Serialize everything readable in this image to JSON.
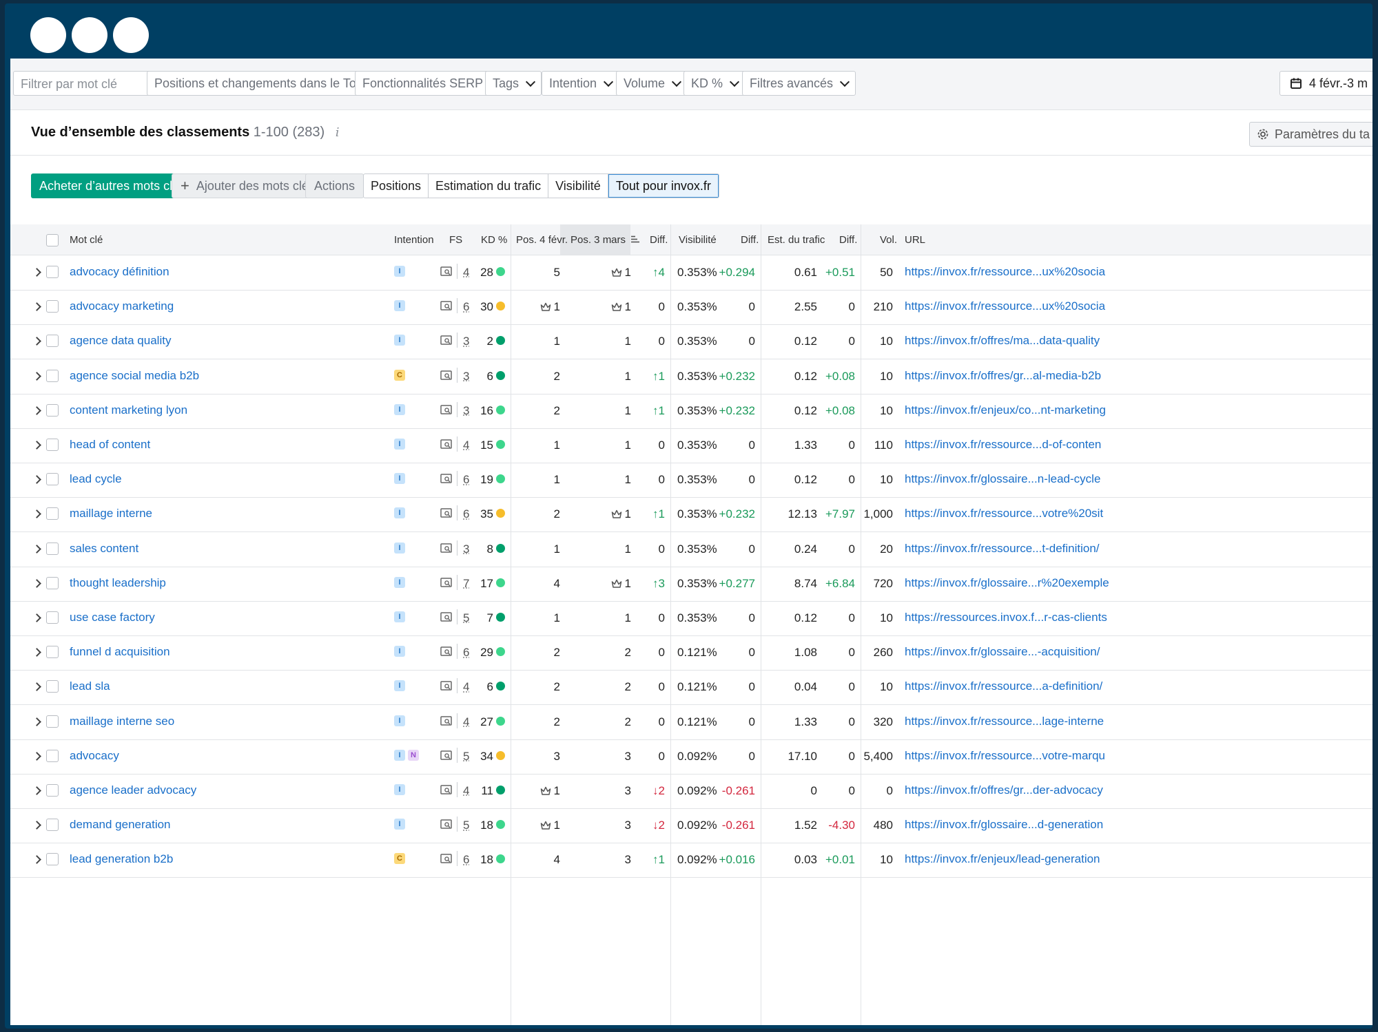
{
  "filters": {
    "search_placeholder": "Filtrer par mot clé",
    "buttons": [
      "Positions et changements dans le Top",
      "Fonctionnalités SERP",
      "Tags",
      "Intention",
      "Volume",
      "KD %",
      "Filtres avancés"
    ],
    "date_range": "4 févr.-3 m"
  },
  "header": {
    "title": "Vue d’ensemble des classements",
    "range": "1-100 (283)",
    "info": "i",
    "settings_label": "Paramètres du ta"
  },
  "actions": {
    "buy": "Acheter d’autres mots clés",
    "add": "Ajouter des mots clés",
    "actions": "Actions",
    "segments": [
      "Positions",
      "Estimation du trafic",
      "Visibilité",
      "Tout pour invox.fr"
    ]
  },
  "table": {
    "columns": {
      "keyword": "Mot clé",
      "intent": "Intention",
      "fs": "FS",
      "kd": "KD %",
      "pos1": "Pos. 4 févr.",
      "pos2": "Pos. 3 mars",
      "diff": "Diff.",
      "visibility": "Visibilité",
      "vis_diff": "Diff.",
      "traffic": "Est. du trafic",
      "traffic_diff": "Diff.",
      "vol": "Vol.",
      "url": "URL"
    },
    "rows": [
      {
        "keyword": "advocacy définition",
        "intents": [
          "I"
        ],
        "fs": "4",
        "kd": "28",
        "kd_color": "#3dd68c",
        "pos1": "5",
        "pos1_crown": false,
        "pos2": "1",
        "pos2_crown": true,
        "diff": "↑4",
        "diff_dir": "up",
        "vis": "0.353%",
        "vis_diff": "+0.294",
        "traffic": "0.61",
        "traffic_diff": "+0.51",
        "vol": "50",
        "url": "https://invox.fr/ressource...ux%20socia"
      },
      {
        "keyword": "advocacy marketing",
        "intents": [
          "I"
        ],
        "fs": "6",
        "kd": "30",
        "kd_color": "#f6bd2b",
        "pos1": "1",
        "pos1_crown": true,
        "pos2": "1",
        "pos2_crown": true,
        "diff": "0",
        "diff_dir": "none",
        "vis": "0.353%",
        "vis_diff": "0",
        "traffic": "2.55",
        "traffic_diff": "0",
        "vol": "210",
        "url": "https://invox.fr/ressource...ux%20socia"
      },
      {
        "keyword": "agence data quality",
        "intents": [
          "I"
        ],
        "fs": "3",
        "kd": "2",
        "kd_color": "#009f6b",
        "pos1": "1",
        "pos1_crown": false,
        "pos2": "1",
        "pos2_crown": false,
        "diff": "0",
        "diff_dir": "none",
        "vis": "0.353%",
        "vis_diff": "0",
        "traffic": "0.12",
        "traffic_diff": "0",
        "vol": "10",
        "url": "https://invox.fr/offres/ma...data-quality"
      },
      {
        "keyword": "agence social media b2b",
        "intents": [
          "C"
        ],
        "fs": "3",
        "kd": "6",
        "kd_color": "#009f6b",
        "pos1": "2",
        "pos1_crown": false,
        "pos2": "1",
        "pos2_crown": false,
        "diff": "↑1",
        "diff_dir": "up",
        "vis": "0.353%",
        "vis_diff": "+0.232",
        "traffic": "0.12",
        "traffic_diff": "+0.08",
        "vol": "10",
        "url": "https://invox.fr/offres/gr...al-media-b2b"
      },
      {
        "keyword": "content marketing lyon",
        "intents": [
          "I"
        ],
        "fs": "3",
        "kd": "16",
        "kd_color": "#3dd68c",
        "pos1": "2",
        "pos1_crown": false,
        "pos2": "1",
        "pos2_crown": false,
        "diff": "↑1",
        "diff_dir": "up",
        "vis": "0.353%",
        "vis_diff": "+0.232",
        "traffic": "0.12",
        "traffic_diff": "+0.08",
        "vol": "10",
        "url": "https://invox.fr/enjeux/co...nt-marketing"
      },
      {
        "keyword": "head of content",
        "intents": [
          "I"
        ],
        "fs": "4",
        "kd": "15",
        "kd_color": "#3dd68c",
        "pos1": "1",
        "pos1_crown": false,
        "pos2": "1",
        "pos2_crown": false,
        "diff": "0",
        "diff_dir": "none",
        "vis": "0.353%",
        "vis_diff": "0",
        "traffic": "1.33",
        "traffic_diff": "0",
        "vol": "110",
        "url": "https://invox.fr/ressource...d-of-conten"
      },
      {
        "keyword": "lead cycle",
        "intents": [
          "I"
        ],
        "fs": "6",
        "kd": "19",
        "kd_color": "#3dd68c",
        "pos1": "1",
        "pos1_crown": false,
        "pos2": "1",
        "pos2_crown": false,
        "diff": "0",
        "diff_dir": "none",
        "vis": "0.353%",
        "vis_diff": "0",
        "traffic": "0.12",
        "traffic_diff": "0",
        "vol": "10",
        "url": "https://invox.fr/glossaire...n-lead-cycle"
      },
      {
        "keyword": "maillage interne",
        "intents": [
          "I"
        ],
        "fs": "6",
        "kd": "35",
        "kd_color": "#f6bd2b",
        "pos1": "2",
        "pos1_crown": false,
        "pos2": "1",
        "pos2_crown": true,
        "diff": "↑1",
        "diff_dir": "up",
        "vis": "0.353%",
        "vis_diff": "+0.232",
        "traffic": "12.13",
        "traffic_diff": "+7.97",
        "vol": "1,000",
        "url": "https://invox.fr/ressource...votre%20sit"
      },
      {
        "keyword": "sales content",
        "intents": [
          "I"
        ],
        "fs": "3",
        "kd": "8",
        "kd_color": "#009f6b",
        "pos1": "1",
        "pos1_crown": false,
        "pos2": "1",
        "pos2_crown": false,
        "diff": "0",
        "diff_dir": "none",
        "vis": "0.353%",
        "vis_diff": "0",
        "traffic": "0.24",
        "traffic_diff": "0",
        "vol": "20",
        "url": "https://invox.fr/ressource...t-definition/"
      },
      {
        "keyword": "thought leadership",
        "intents": [
          "I"
        ],
        "fs": "7",
        "kd": "17",
        "kd_color": "#3dd68c",
        "pos1": "4",
        "pos1_crown": false,
        "pos2": "1",
        "pos2_crown": true,
        "diff": "↑3",
        "diff_dir": "up",
        "vis": "0.353%",
        "vis_diff": "+0.277",
        "traffic": "8.74",
        "traffic_diff": "+6.84",
        "vol": "720",
        "url": "https://invox.fr/glossaire...r%20exemple"
      },
      {
        "keyword": "use case factory",
        "intents": [
          "I"
        ],
        "fs": "5",
        "kd": "7",
        "kd_color": "#009f6b",
        "pos1": "1",
        "pos1_crown": false,
        "pos2": "1",
        "pos2_crown": false,
        "diff": "0",
        "diff_dir": "none",
        "vis": "0.353%",
        "vis_diff": "0",
        "traffic": "0.12",
        "traffic_diff": "0",
        "vol": "10",
        "url": "https://ressources.invox.f...r-cas-clients"
      },
      {
        "keyword": "funnel d acquisition",
        "intents": [
          "I"
        ],
        "fs": "6",
        "kd": "29",
        "kd_color": "#3dd68c",
        "pos1": "2",
        "pos1_crown": false,
        "pos2": "2",
        "pos2_crown": false,
        "diff": "0",
        "diff_dir": "none",
        "vis": "0.121%",
        "vis_diff": "0",
        "traffic": "1.08",
        "traffic_diff": "0",
        "vol": "260",
        "url": "https://invox.fr/glossaire...-acquisition/"
      },
      {
        "keyword": "lead sla",
        "intents": [
          "I"
        ],
        "fs": "4",
        "kd": "6",
        "kd_color": "#009f6b",
        "pos1": "2",
        "pos1_crown": false,
        "pos2": "2",
        "pos2_crown": false,
        "diff": "0",
        "diff_dir": "none",
        "vis": "0.121%",
        "vis_diff": "0",
        "traffic": "0.04",
        "traffic_diff": "0",
        "vol": "10",
        "url": "https://invox.fr/ressource...a-definition/"
      },
      {
        "keyword": "maillage interne seo",
        "intents": [
          "I"
        ],
        "fs": "4",
        "kd": "27",
        "kd_color": "#3dd68c",
        "pos1": "2",
        "pos1_crown": false,
        "pos2": "2",
        "pos2_crown": false,
        "diff": "0",
        "diff_dir": "none",
        "vis": "0.121%",
        "vis_diff": "0",
        "traffic": "1.33",
        "traffic_diff": "0",
        "vol": "320",
        "url": "https://invox.fr/ressource...lage-interne"
      },
      {
        "keyword": "advocacy",
        "intents": [
          "I",
          "N"
        ],
        "fs": "5",
        "kd": "34",
        "kd_color": "#f6bd2b",
        "pos1": "3",
        "pos1_crown": false,
        "pos2": "3",
        "pos2_crown": false,
        "diff": "0",
        "diff_dir": "none",
        "vis": "0.092%",
        "vis_diff": "0",
        "traffic": "17.10",
        "traffic_diff": "0",
        "vol": "5,400",
        "url": "https://invox.fr/ressource...votre-marqu"
      },
      {
        "keyword": "agence leader advocacy",
        "intents": [
          "I"
        ],
        "fs": "4",
        "kd": "11",
        "kd_color": "#009f6b",
        "pos1": "1",
        "pos1_crown": true,
        "pos2": "3",
        "pos2_crown": false,
        "diff": "↓2",
        "diff_dir": "down",
        "vis": "0.092%",
        "vis_diff": "-0.261",
        "traffic": "0",
        "traffic_diff": "0",
        "vol": "0",
        "url": "https://invox.fr/offres/gr...der-advocacy"
      },
      {
        "keyword": "demand generation",
        "intents": [
          "I"
        ],
        "fs": "5",
        "kd": "18",
        "kd_color": "#3dd68c",
        "pos1": "1",
        "pos1_crown": true,
        "pos2": "3",
        "pos2_crown": false,
        "diff": "↓2",
        "diff_dir": "down",
        "vis": "0.092%",
        "vis_diff": "-0.261",
        "traffic": "1.52",
        "traffic_diff": "-4.30",
        "vol": "480",
        "url": "https://invox.fr/glossaire...d-generation"
      },
      {
        "keyword": "lead generation b2b",
        "intents": [
          "C"
        ],
        "fs": "6",
        "kd": "18",
        "kd_color": "#3dd68c",
        "pos1": "4",
        "pos1_crown": false,
        "pos2": "3",
        "pos2_crown": false,
        "diff": "↑1",
        "diff_dir": "up",
        "vis": "0.092%",
        "vis_diff": "+0.016",
        "traffic": "0.03",
        "traffic_diff": "+0.01",
        "vol": "10",
        "url": "https://invox.fr/enjeux/lead-generation"
      }
    ]
  }
}
